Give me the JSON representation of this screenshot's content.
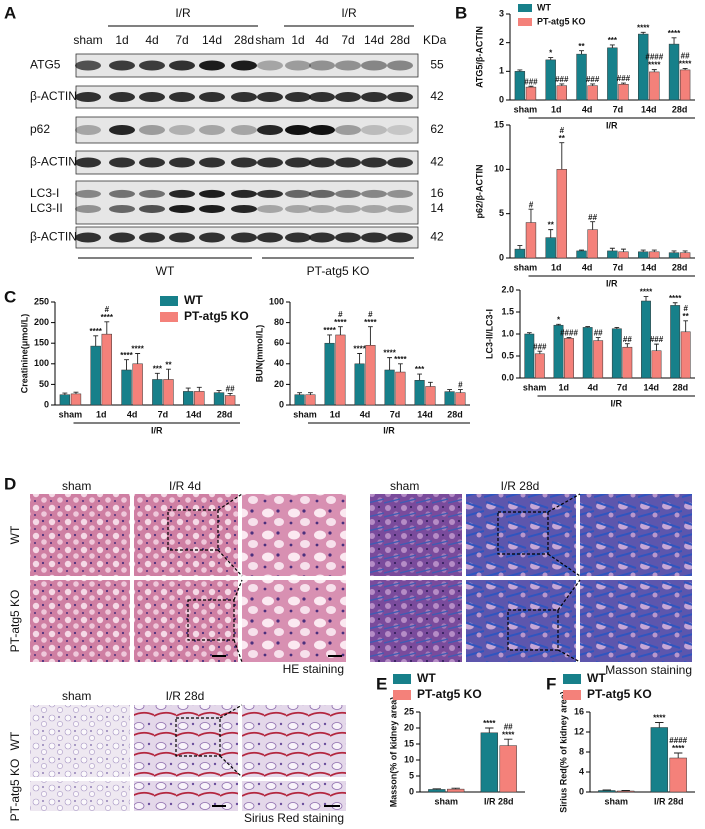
{
  "panels": [
    "A",
    "B",
    "C",
    "D",
    "E",
    "F"
  ],
  "blot": {
    "kda_header": "KDa",
    "groups": [
      {
        "name": "WT",
        "ir_label": "I/R",
        "lanes": [
          "sham",
          "1d",
          "4d",
          "7d",
          "14d",
          "28d"
        ]
      },
      {
        "name": "PT-atg5 KO",
        "ir_label": "I/R",
        "lanes": [
          "sham",
          "1d",
          "4d",
          "7d",
          "14d",
          "28d"
        ]
      }
    ],
    "rows": [
      {
        "labels": [
          "ATG5"
        ],
        "kda": [
          55
        ]
      },
      {
        "labels": [
          "β-ACTIN"
        ],
        "kda": [
          42
        ]
      },
      {
        "labels": [
          "p62"
        ],
        "kda": [
          62
        ]
      },
      {
        "labels": [
          "β-ACTIN"
        ],
        "kda": [
          42
        ]
      },
      {
        "labels": [
          "LC3-I",
          "LC3-II"
        ],
        "kda": [
          16,
          14
        ]
      },
      {
        "labels": [
          "β-ACTIN"
        ],
        "kda": [
          42
        ]
      }
    ]
  },
  "histology": {
    "he": {
      "columns": [
        "sham",
        "I/R 4d"
      ],
      "rows": [
        "WT",
        "PT-atg5 KO"
      ],
      "caption": "HE staining"
    },
    "masson": {
      "columns": [
        "sham",
        "I/R 28d"
      ],
      "caption": "Masson staining"
    },
    "sirius": {
      "columns": [
        "sham",
        "I/R 28d"
      ],
      "rows": [
        "WT",
        "PT-atg5 KO"
      ],
      "caption": "Sirius Red staining"
    }
  },
  "chart_data": [
    {
      "type": "bar",
      "y_label": "ATG5/β-ACTIN",
      "categories": [
        "sham",
        "1d",
        "4d",
        "7d",
        "14d",
        "28d"
      ],
      "group_label": "I/R",
      "ylim": [
        0,
        3
      ],
      "yticks": [
        0,
        1,
        2,
        3
      ],
      "legend": true,
      "series": [
        {
          "name": "WT",
          "color": "#17808a",
          "values": [
            1.0,
            1.4,
            1.6,
            1.82,
            2.3,
            1.95
          ],
          "errors": [
            0.05,
            0.08,
            0.12,
            0.1,
            0.06,
            0.22
          ],
          "annotations": [
            null,
            [
              "*"
            ],
            [
              "**"
            ],
            [
              "***"
            ],
            [
              "****"
            ],
            [
              "****"
            ]
          ]
        },
        {
          "name": "PT-atg5 KO",
          "color": "#f4817a",
          "values": [
            0.45,
            0.5,
            0.5,
            0.55,
            0.98,
            1.05
          ],
          "errors": [
            0.03,
            0.06,
            0.06,
            0.04,
            0.08,
            0.05
          ],
          "annotations": [
            [
              "###"
            ],
            [
              "###"
            ],
            [
              "###"
            ],
            [
              "###"
            ],
            [
              "####",
              "****"
            ],
            [
              "##",
              "****"
            ]
          ]
        }
      ]
    },
    {
      "type": "bar",
      "y_label": "p62/β-ACTIN",
      "categories": [
        "sham",
        "1d",
        "4d",
        "7d",
        "14d",
        "28d"
      ],
      "group_label": "I/R",
      "ylim": [
        0,
        15
      ],
      "yticks": [
        0,
        5,
        10,
        15
      ],
      "series": [
        {
          "name": "WT",
          "color": "#17808a",
          "values": [
            1.0,
            2.3,
            0.8,
            0.8,
            0.7,
            0.6
          ],
          "errors": [
            0.4,
            0.9,
            0.1,
            0.3,
            0.2,
            0.2
          ],
          "annotations": [
            null,
            [
              "**"
            ],
            null,
            null,
            null,
            null
          ]
        },
        {
          "name": "PT-atg5 KO",
          "color": "#f4817a",
          "values": [
            4.0,
            10.0,
            3.2,
            0.7,
            0.7,
            0.6
          ],
          "errors": [
            1.5,
            3.0,
            0.9,
            0.3,
            0.2,
            0.2
          ],
          "annotations": [
            [
              "#"
            ],
            [
              "#",
              "**"
            ],
            [
              "##"
            ],
            null,
            null,
            null
          ]
        }
      ]
    },
    {
      "type": "bar",
      "y_label": "LC3-II/LC3-I",
      "categories": [
        "sham",
        "1d",
        "4d",
        "7d",
        "14d",
        "28d"
      ],
      "group_label": "I/R",
      "ylim": [
        0,
        2.0
      ],
      "yticks": [
        {
          "value": 0,
          "label": "0.0"
        },
        {
          "value": 0.5,
          "label": "0.5"
        },
        {
          "value": 1.0,
          "label": "1.0"
        },
        {
          "value": 1.5,
          "label": "1.5"
        },
        {
          "value": 2.0,
          "label": "2.0"
        }
      ],
      "series": [
        {
          "name": "WT",
          "color": "#17808a",
          "values": [
            1.0,
            1.2,
            1.15,
            1.12,
            1.75,
            1.65
          ],
          "errors": [
            0.03,
            0.02,
            0.02,
            0.03,
            0.1,
            0.06
          ],
          "annotations": [
            null,
            [
              "*"
            ],
            null,
            null,
            [
              "****"
            ],
            [
              "****"
            ]
          ]
        },
        {
          "name": "PT-atg5 KO",
          "color": "#f4817a",
          "values": [
            0.55,
            0.9,
            0.85,
            0.7,
            0.62,
            1.05
          ],
          "errors": [
            0.06,
            0.02,
            0.07,
            0.08,
            0.15,
            0.25
          ],
          "annotations": [
            [
              "###"
            ],
            [
              "####"
            ],
            [
              "##"
            ],
            [
              "##"
            ],
            [
              "###"
            ],
            [
              "#",
              "**"
            ]
          ]
        }
      ]
    },
    {
      "type": "bar",
      "y_label": "Creatinine(μmol/L)",
      "categories": [
        "sham",
        "1d",
        "4d",
        "7d",
        "14d",
        "28d"
      ],
      "group_label": "I/R",
      "ylim": [
        0,
        250
      ],
      "yticks": [
        0,
        50,
        100,
        150,
        200,
        250
      ],
      "legend": true,
      "series": [
        {
          "name": "WT",
          "color": "#17808a",
          "values": [
            25,
            143,
            85,
            62,
            33,
            30
          ],
          "errors": [
            4,
            25,
            25,
            15,
            8,
            5
          ],
          "annotations": [
            null,
            [
              "****"
            ],
            [
              "****"
            ],
            [
              "***"
            ],
            null,
            null
          ]
        },
        {
          "name": "PT-atg5 KO",
          "color": "#f4817a",
          "values": [
            27,
            172,
            100,
            62,
            33,
            23
          ],
          "errors": [
            4,
            30,
            25,
            25,
            10,
            5
          ],
          "annotations": [
            null,
            [
              "#",
              "****"
            ],
            [
              "****"
            ],
            [
              "**"
            ],
            null,
            [
              "##"
            ]
          ]
        }
      ]
    },
    {
      "type": "bar",
      "y_label": "BUN(mmol/L)",
      "categories": [
        "sham",
        "1d",
        "4d",
        "7d",
        "14d",
        "28d"
      ],
      "group_label": "I/R",
      "ylim": [
        0,
        100
      ],
      "yticks": [
        0,
        20,
        40,
        60,
        80,
        100
      ],
      "series": [
        {
          "name": "WT",
          "color": "#17808a",
          "values": [
            10,
            60,
            40,
            34,
            24,
            13
          ],
          "errors": [
            2,
            8,
            10,
            12,
            6,
            2
          ],
          "annotations": [
            null,
            [
              "****"
            ],
            [
              "****"
            ],
            [
              "****"
            ],
            [
              "***"
            ],
            null
          ]
        },
        {
          "name": "PT-atg5 KO",
          "color": "#f4817a",
          "values": [
            10,
            68,
            58,
            32,
            18,
            12
          ],
          "errors": [
            2,
            8,
            18,
            8,
            4,
            3
          ],
          "annotations": [
            null,
            [
              "#",
              "****"
            ],
            [
              "#",
              "****"
            ],
            [
              "****"
            ],
            null,
            [
              "#"
            ]
          ]
        }
      ]
    },
    {
      "type": "bar",
      "y_label": "Masson(% of kidney area)",
      "categories": [
        "sham",
        "I/R 28d"
      ],
      "ylim": [
        0,
        25
      ],
      "yticks": [
        0,
        5,
        10,
        15,
        20,
        25
      ],
      "legend": true,
      "series": [
        {
          "name": "WT",
          "color": "#17808a",
          "values": [
            0.8,
            18.5
          ],
          "errors": [
            0.2,
            1.5
          ],
          "annotations": [
            null,
            [
              "****"
            ]
          ]
        },
        {
          "name": "PT-atg5 KO",
          "color": "#f4817a",
          "values": [
            0.9,
            14.5
          ],
          "errors": [
            0.3,
            2.0
          ],
          "annotations": [
            null,
            [
              "##",
              "****"
            ]
          ]
        }
      ]
    },
    {
      "type": "bar",
      "y_label": "Sirius Red(% of kidney area)",
      "categories": [
        "sham",
        "I/R 28d"
      ],
      "ylim": [
        0,
        16
      ],
      "yticks": [
        0,
        4,
        8,
        12,
        16
      ],
      "legend": true,
      "series": [
        {
          "name": "WT",
          "color": "#17808a",
          "values": [
            0.3,
            12.9
          ],
          "errors": [
            0.1,
            1.0
          ],
          "annotations": [
            null,
            [
              "****"
            ]
          ]
        },
        {
          "name": "PT-atg5 KO",
          "color": "#f4817a",
          "values": [
            0.2,
            6.8
          ],
          "errors": [
            0.1,
            1.0
          ],
          "annotations": [
            null,
            [
              "####",
              "****"
            ]
          ]
        }
      ]
    }
  ]
}
